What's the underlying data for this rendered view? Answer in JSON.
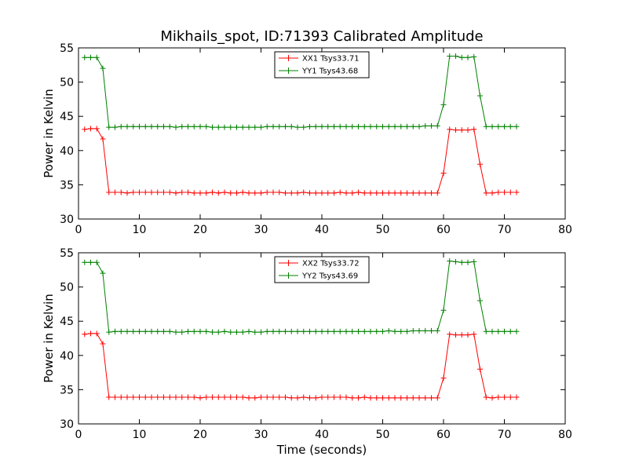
{
  "chart_data": [
    {
      "type": "line",
      "title": "Mikhails_spot, ID:71393 Calibrated Amplitude",
      "xlabel": "",
      "ylabel": "Power in Kelvin",
      "xlim": [
        0,
        80
      ],
      "ylim": [
        30,
        55
      ],
      "xticks": [
        0,
        10,
        20,
        30,
        40,
        50,
        60,
        70,
        80
      ],
      "yticks": [
        30,
        35,
        40,
        45,
        50,
        55
      ],
      "grid": false,
      "legend_position": "top-center",
      "x": [
        1,
        2,
        3,
        4,
        5,
        6,
        7,
        8,
        9,
        10,
        11,
        12,
        13,
        14,
        15,
        16,
        17,
        18,
        19,
        20,
        21,
        22,
        23,
        24,
        25,
        26,
        27,
        28,
        29,
        30,
        31,
        32,
        33,
        34,
        35,
        36,
        37,
        38,
        39,
        40,
        41,
        42,
        43,
        44,
        45,
        46,
        47,
        48,
        49,
        50,
        51,
        52,
        53,
        54,
        55,
        56,
        57,
        58,
        59,
        60,
        61,
        62,
        63,
        64,
        65,
        66,
        67,
        68,
        69,
        70,
        71,
        72
      ],
      "series": [
        {
          "name": "XX1 Tsys33.71",
          "color": "#ff0000",
          "values": [
            43.1,
            43.2,
            43.2,
            41.7,
            33.9,
            33.9,
            33.9,
            33.8,
            33.9,
            33.9,
            33.9,
            33.9,
            33.9,
            33.9,
            33.9,
            33.8,
            33.9,
            33.9,
            33.8,
            33.8,
            33.8,
            33.9,
            33.8,
            33.9,
            33.8,
            33.8,
            33.9,
            33.8,
            33.8,
            33.8,
            33.9,
            33.9,
            33.9,
            33.8,
            33.8,
            33.8,
            33.9,
            33.8,
            33.8,
            33.8,
            33.8,
            33.8,
            33.9,
            33.8,
            33.8,
            33.9,
            33.8,
            33.8,
            33.8,
            33.8,
            33.8,
            33.8,
            33.8,
            33.8,
            33.8,
            33.8,
            33.8,
            33.8,
            33.8,
            36.7,
            43.1,
            43.0,
            43.0,
            43.0,
            43.1,
            38.0,
            33.8,
            33.8,
            33.9,
            33.9,
            33.9,
            33.9
          ]
        },
        {
          "name": "YY1 Tsys43.68",
          "color": "#008000",
          "values": [
            53.6,
            53.6,
            53.6,
            52.0,
            43.4,
            43.4,
            43.5,
            43.5,
            43.5,
            43.5,
            43.5,
            43.5,
            43.5,
            43.5,
            43.5,
            43.4,
            43.5,
            43.5,
            43.5,
            43.5,
            43.5,
            43.4,
            43.4,
            43.4,
            43.4,
            43.4,
            43.4,
            43.4,
            43.4,
            43.4,
            43.5,
            43.5,
            43.5,
            43.5,
            43.5,
            43.4,
            43.4,
            43.5,
            43.5,
            43.5,
            43.5,
            43.5,
            43.5,
            43.5,
            43.5,
            43.5,
            43.5,
            43.5,
            43.5,
            43.5,
            43.5,
            43.5,
            43.5,
            43.5,
            43.5,
            43.5,
            43.6,
            43.6,
            43.6,
            46.7,
            53.8,
            53.8,
            53.6,
            53.6,
            53.7,
            48.0,
            43.5,
            43.5,
            43.5,
            43.5,
            43.5,
            43.5
          ]
        }
      ]
    },
    {
      "type": "line",
      "title": "",
      "xlabel": "Time (seconds)",
      "ylabel": "Power in Kelvin",
      "xlim": [
        0,
        80
      ],
      "ylim": [
        30,
        55
      ],
      "xticks": [
        0,
        10,
        20,
        30,
        40,
        50,
        60,
        70,
        80
      ],
      "yticks": [
        30,
        35,
        40,
        45,
        50,
        55
      ],
      "grid": false,
      "legend_position": "top-center",
      "x": [
        1,
        2,
        3,
        4,
        5,
        6,
        7,
        8,
        9,
        10,
        11,
        12,
        13,
        14,
        15,
        16,
        17,
        18,
        19,
        20,
        21,
        22,
        23,
        24,
        25,
        26,
        27,
        28,
        29,
        30,
        31,
        32,
        33,
        34,
        35,
        36,
        37,
        38,
        39,
        40,
        41,
        42,
        43,
        44,
        45,
        46,
        47,
        48,
        49,
        50,
        51,
        52,
        53,
        54,
        55,
        56,
        57,
        58,
        59,
        60,
        61,
        62,
        63,
        64,
        65,
        66,
        67,
        68,
        69,
        70,
        71,
        72
      ],
      "series": [
        {
          "name": "XX2 Tsys33.72",
          "color": "#ff0000",
          "values": [
            43.1,
            43.2,
            43.2,
            41.7,
            33.9,
            33.9,
            33.9,
            33.9,
            33.9,
            33.9,
            33.9,
            33.9,
            33.9,
            33.9,
            33.9,
            33.9,
            33.9,
            33.9,
            33.9,
            33.8,
            33.9,
            33.9,
            33.9,
            33.9,
            33.9,
            33.9,
            33.9,
            33.8,
            33.8,
            33.9,
            33.9,
            33.9,
            33.9,
            33.9,
            33.8,
            33.8,
            33.9,
            33.8,
            33.8,
            33.9,
            33.9,
            33.9,
            33.9,
            33.9,
            33.8,
            33.8,
            33.9,
            33.8,
            33.8,
            33.8,
            33.8,
            33.8,
            33.8,
            33.8,
            33.8,
            33.8,
            33.8,
            33.8,
            33.8,
            36.7,
            43.1,
            43.0,
            43.0,
            43.0,
            43.1,
            38.0,
            33.9,
            33.8,
            33.9,
            33.9,
            33.9,
            33.9
          ]
        },
        {
          "name": "YY2 Tsys43.69",
          "color": "#008000",
          "values": [
            53.6,
            53.6,
            53.6,
            52.0,
            43.4,
            43.5,
            43.5,
            43.5,
            43.5,
            43.5,
            43.5,
            43.5,
            43.5,
            43.5,
            43.5,
            43.4,
            43.4,
            43.5,
            43.5,
            43.5,
            43.5,
            43.4,
            43.4,
            43.5,
            43.4,
            43.4,
            43.4,
            43.5,
            43.4,
            43.4,
            43.5,
            43.5,
            43.5,
            43.5,
            43.5,
            43.5,
            43.5,
            43.5,
            43.5,
            43.5,
            43.5,
            43.5,
            43.5,
            43.5,
            43.5,
            43.5,
            43.5,
            43.5,
            43.5,
            43.5,
            43.6,
            43.5,
            43.5,
            43.5,
            43.6,
            43.6,
            43.6,
            43.6,
            43.6,
            46.6,
            53.8,
            53.7,
            53.6,
            53.6,
            53.7,
            48.0,
            43.5,
            43.5,
            43.5,
            43.5,
            43.5,
            43.5
          ]
        }
      ]
    }
  ]
}
